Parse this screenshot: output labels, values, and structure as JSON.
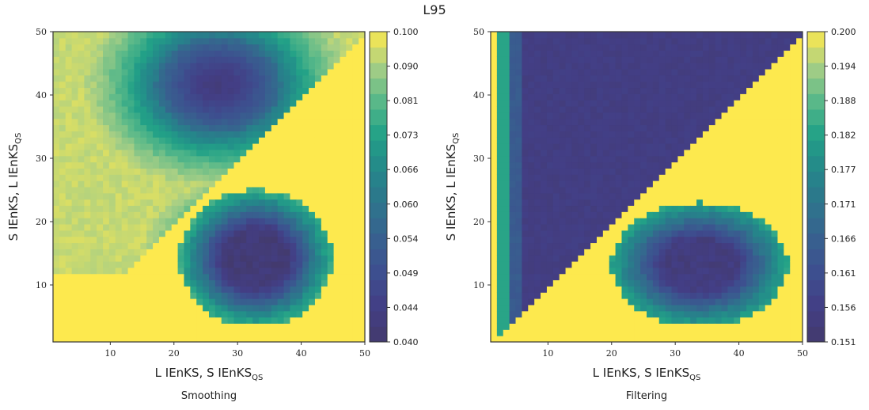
{
  "figure": {
    "title": "L95"
  },
  "chart_data": [
    {
      "type": "heatmap",
      "title": "",
      "caption": "Smoothing",
      "xlabel_main": "L IEnKS, S IEnKS",
      "xlabel_sub": "QS",
      "ylabel_main": "S IEnKS, L IEnKS",
      "ylabel_sub": "QS",
      "xlim": [
        1,
        50
      ],
      "ylim": [
        1,
        50
      ],
      "xticks": [
        "10",
        "20",
        "30",
        "40",
        "50"
      ],
      "yticks": [
        "10",
        "20",
        "30",
        "40",
        "50"
      ],
      "colorbar": {
        "vmin": 0.04,
        "vmax": 0.1,
        "ticks": [
          "0.040",
          "0.044",
          "0.049",
          "0.054",
          "0.060",
          "0.066",
          "0.073",
          "0.081",
          "0.090",
          "0.100"
        ]
      },
      "grid_size": 50,
      "regions_description_values": {
        "upper_right_triangle_yellow_where_y_lt_x": 0.1,
        "upper_left_dark_core": 0.045,
        "lower_center_dark_core": 0.047,
        "lower_left_corner_yellow": 0.1
      }
    },
    {
      "type": "heatmap",
      "title": "",
      "caption": "Filtering",
      "xlabel_main": "L IEnKS, S IEnKS",
      "xlabel_sub": "QS",
      "ylabel_main": "S IEnKS, L IEnKS",
      "ylabel_sub": "QS",
      "xlim": [
        1,
        50
      ],
      "ylim": [
        1,
        50
      ],
      "xticks": [
        "10",
        "20",
        "30",
        "40",
        "50"
      ],
      "yticks": [
        "10",
        "20",
        "30",
        "40",
        "50"
      ],
      "colorbar": {
        "vmin": 0.151,
        "vmax": 0.2,
        "ticks": [
          "0.151",
          "0.156",
          "0.161",
          "0.166",
          "0.171",
          "0.177",
          "0.182",
          "0.188",
          "0.194",
          "0.200"
        ]
      },
      "grid_size": 50,
      "regions_description_values": {
        "upper_right_triangle_yellow_where_y_lt_x": 0.2,
        "upper_left_dark_field": 0.158,
        "lower_center_dark_core": 0.16,
        "left_edge_strip": 0.185
      }
    }
  ],
  "palette": {
    "viridis_like": [
      "#433a6c",
      "#433e85",
      "#3d4f8f",
      "#38608f",
      "#2e748c",
      "#24878a",
      "#22a187",
      "#5ab989",
      "#a8cf85",
      "#fde94e"
    ]
  }
}
